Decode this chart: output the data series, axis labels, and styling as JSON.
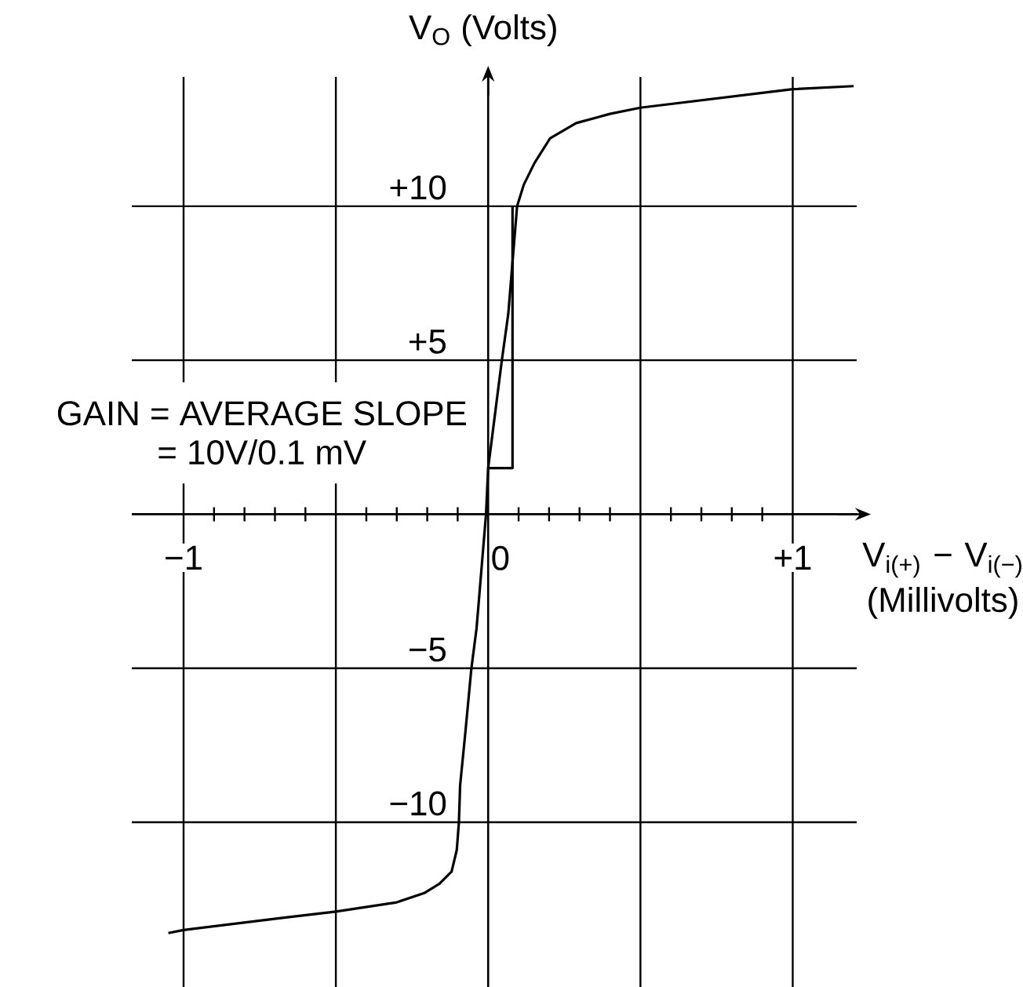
{
  "chart_data": {
    "type": "line",
    "xlabel": "V$_{i(+)}$ − V$_{i(−)}$ (Millivolts)",
    "ylabel": "V$_{O}$ (Volts)",
    "annotations": [
      {
        "text": "GAIN = AVERAGE SLOPE",
        "x": 0.0,
        "y": 1.5
      },
      "= 10V/0.1 mV"
    ],
    "xlim": [
      -1.17,
      1.21
    ],
    "ylim": [
      -15.35,
      14.2
    ],
    "xticks": [
      {
        "value": -1,
        "label": "−1"
      },
      {
        "value": -0.5,
        "label": null
      },
      0,
      {
        "value": 0.5,
        "label": null
      },
      {
        "value": 1,
        "label": "+1"
      }
    ],
    "yticks": [
      {
        "value": -10,
        "label": "−10"
      },
      {
        "value": -5,
        "label": "−5"
      },
      {
        "value": 5,
        "label": "+5"
      },
      {
        "value": 10,
        "label": "+10"
      }
    ],
    "grid": true,
    "series": [
      {
        "color": "#000000",
        "x": [
          -1.05,
          -1.0,
          -0.67,
          -0.5,
          -0.3,
          -0.21,
          -0.16,
          -0.12,
          -0.103,
          -0.096,
          -0.092,
          -0.075,
          -0.055,
          -0.038,
          -0.007,
          0.0,
          0.045,
          0.066,
          0.095,
          0.117,
          0.152,
          0.203,
          0.289,
          0.4,
          0.5,
          1.0,
          1.2
        ],
        "values": [
          -13.6,
          -13.5,
          -13.1,
          -12.9,
          -12.6,
          -12.3,
          -12.0,
          -11.6,
          -10.9,
          -10.0,
          -8.8,
          -7.1,
          -5.0,
          -3.7,
          0.0,
          1.5,
          5.0,
          6.5,
          10.0,
          10.7,
          11.4,
          12.2,
          12.7,
          13.0,
          13.2,
          13.8,
          13.9
        ]
      },
      {
        "color": "#000000",
        "x": [
          0.0,
          0.08,
          0.08
        ],
        "values": [
          1.5,
          1.5,
          10.0
        ]
      }
    ]
  }
}
